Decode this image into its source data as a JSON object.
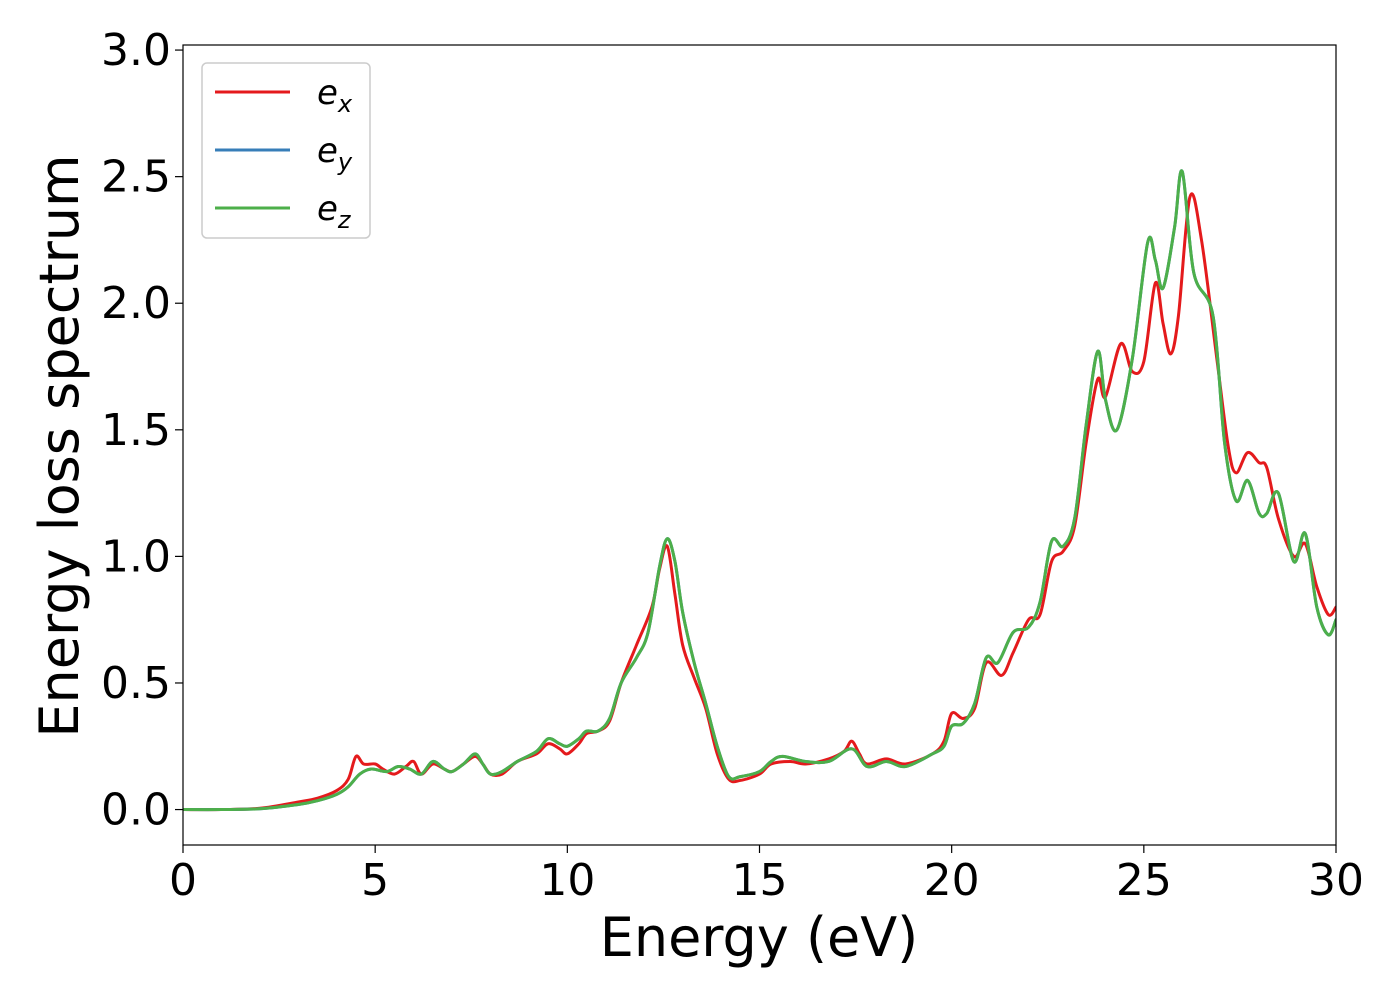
{
  "chart_data": {
    "type": "line",
    "title": "",
    "xlabel": "Energy (eV)",
    "ylabel": "Energy loss spectrum",
    "xlim": [
      0,
      30
    ],
    "ylim": [
      -0.14,
      3.02
    ],
    "xticks": [
      0,
      5,
      10,
      15,
      20,
      25,
      30
    ],
    "yticks": [
      0.0,
      0.5,
      1.0,
      1.5,
      2.0,
      2.5,
      3.0
    ],
    "xtick_labels": [
      "0",
      "5",
      "10",
      "15",
      "20",
      "25",
      "30"
    ],
    "ytick_labels": [
      "0.0",
      "0.5",
      "1.0",
      "1.5",
      "2.0",
      "2.5",
      "3.0"
    ],
    "grid": false,
    "legend_position": "top-left",
    "series": [
      {
        "name": "e_x",
        "label_base": "e",
        "label_sub": "x",
        "color": "#e41a1c",
        "points": [
          [
            0,
            0.0
          ],
          [
            1,
            0.0
          ],
          [
            2,
            0.005
          ],
          [
            3,
            0.03
          ],
          [
            3.5,
            0.045
          ],
          [
            4,
            0.075
          ],
          [
            4.3,
            0.12
          ],
          [
            4.5,
            0.21
          ],
          [
            4.7,
            0.18
          ],
          [
            5.0,
            0.18
          ],
          [
            5.2,
            0.16
          ],
          [
            5.5,
            0.14
          ],
          [
            5.8,
            0.17
          ],
          [
            6.0,
            0.19
          ],
          [
            6.2,
            0.14
          ],
          [
            6.5,
            0.18
          ],
          [
            6.8,
            0.16
          ],
          [
            7.0,
            0.15
          ],
          [
            7.3,
            0.18
          ],
          [
            7.6,
            0.21
          ],
          [
            7.8,
            0.18
          ],
          [
            8.0,
            0.14
          ],
          [
            8.3,
            0.14
          ],
          [
            8.7,
            0.19
          ],
          [
            9.2,
            0.22
          ],
          [
            9.5,
            0.26
          ],
          [
            9.8,
            0.24
          ],
          [
            10.0,
            0.22
          ],
          [
            10.3,
            0.26
          ],
          [
            10.5,
            0.3
          ],
          [
            10.8,
            0.31
          ],
          [
            11.1,
            0.35
          ],
          [
            11.4,
            0.5
          ],
          [
            11.8,
            0.65
          ],
          [
            12.2,
            0.8
          ],
          [
            12.4,
            0.95
          ],
          [
            12.6,
            1.04
          ],
          [
            12.8,
            0.85
          ],
          [
            13.0,
            0.65
          ],
          [
            13.3,
            0.52
          ],
          [
            13.6,
            0.4
          ],
          [
            13.9,
            0.22
          ],
          [
            14.2,
            0.12
          ],
          [
            14.5,
            0.115
          ],
          [
            15.0,
            0.14
          ],
          [
            15.3,
            0.18
          ],
          [
            15.8,
            0.19
          ],
          [
            16.2,
            0.18
          ],
          [
            16.8,
            0.2
          ],
          [
            17.2,
            0.23
          ],
          [
            17.4,
            0.27
          ],
          [
            17.6,
            0.22
          ],
          [
            17.8,
            0.18
          ],
          [
            18.3,
            0.2
          ],
          [
            18.8,
            0.18
          ],
          [
            19.5,
            0.22
          ],
          [
            19.8,
            0.27
          ],
          [
            20.0,
            0.38
          ],
          [
            20.3,
            0.36
          ],
          [
            20.6,
            0.4
          ],
          [
            20.9,
            0.58
          ],
          [
            21.3,
            0.53
          ],
          [
            21.6,
            0.62
          ],
          [
            22.0,
            0.75
          ],
          [
            22.3,
            0.77
          ],
          [
            22.6,
            0.98
          ],
          [
            22.9,
            1.02
          ],
          [
            23.2,
            1.12
          ],
          [
            23.5,
            1.45
          ],
          [
            23.8,
            1.7
          ],
          [
            24.0,
            1.63
          ],
          [
            24.4,
            1.84
          ],
          [
            24.7,
            1.73
          ],
          [
            25.0,
            1.77
          ],
          [
            25.3,
            2.08
          ],
          [
            25.5,
            1.92
          ],
          [
            25.7,
            1.8
          ],
          [
            25.9,
            1.95
          ],
          [
            26.2,
            2.42
          ],
          [
            26.5,
            2.25
          ],
          [
            26.9,
            1.78
          ],
          [
            27.2,
            1.43
          ],
          [
            27.4,
            1.33
          ],
          [
            27.7,
            1.41
          ],
          [
            28.0,
            1.37
          ],
          [
            28.2,
            1.35
          ],
          [
            28.5,
            1.15
          ],
          [
            28.9,
            1.0
          ],
          [
            29.2,
            1.05
          ],
          [
            29.5,
            0.88
          ],
          [
            29.8,
            0.77
          ],
          [
            30.0,
            0.8
          ]
        ]
      },
      {
        "name": "e_y",
        "label_base": "e",
        "label_sub": "y",
        "color": "#377eb8",
        "points": [
          [
            0,
            0.0
          ],
          [
            1,
            0.0
          ],
          [
            2,
            0.003
          ],
          [
            3,
            0.02
          ],
          [
            3.5,
            0.035
          ],
          [
            4,
            0.06
          ],
          [
            4.3,
            0.09
          ],
          [
            4.6,
            0.14
          ],
          [
            4.9,
            0.16
          ],
          [
            5.3,
            0.15
          ],
          [
            5.6,
            0.17
          ],
          [
            5.9,
            0.16
          ],
          [
            6.2,
            0.14
          ],
          [
            6.5,
            0.19
          ],
          [
            6.8,
            0.16
          ],
          [
            7.0,
            0.15
          ],
          [
            7.3,
            0.18
          ],
          [
            7.6,
            0.22
          ],
          [
            7.8,
            0.18
          ],
          [
            8.0,
            0.14
          ],
          [
            8.3,
            0.15
          ],
          [
            8.7,
            0.19
          ],
          [
            9.2,
            0.23
          ],
          [
            9.5,
            0.28
          ],
          [
            9.8,
            0.26
          ],
          [
            10.0,
            0.25
          ],
          [
            10.3,
            0.28
          ],
          [
            10.5,
            0.31
          ],
          [
            10.8,
            0.31
          ],
          [
            11.1,
            0.36
          ],
          [
            11.4,
            0.5
          ],
          [
            11.8,
            0.6
          ],
          [
            12.1,
            0.7
          ],
          [
            12.4,
            0.96
          ],
          [
            12.6,
            1.07
          ],
          [
            12.8,
            0.98
          ],
          [
            13.0,
            0.78
          ],
          [
            13.3,
            0.58
          ],
          [
            13.6,
            0.42
          ],
          [
            13.9,
            0.25
          ],
          [
            14.2,
            0.13
          ],
          [
            14.5,
            0.13
          ],
          [
            15.0,
            0.15
          ],
          [
            15.3,
            0.19
          ],
          [
            15.6,
            0.21
          ],
          [
            16.2,
            0.19
          ],
          [
            16.8,
            0.19
          ],
          [
            17.4,
            0.24
          ],
          [
            17.8,
            0.17
          ],
          [
            18.3,
            0.19
          ],
          [
            18.8,
            0.17
          ],
          [
            19.5,
            0.22
          ],
          [
            19.8,
            0.25
          ],
          [
            20.0,
            0.33
          ],
          [
            20.3,
            0.34
          ],
          [
            20.6,
            0.42
          ],
          [
            20.9,
            0.6
          ],
          [
            21.2,
            0.58
          ],
          [
            21.6,
            0.7
          ],
          [
            22.0,
            0.72
          ],
          [
            22.3,
            0.82
          ],
          [
            22.6,
            1.06
          ],
          [
            22.9,
            1.04
          ],
          [
            23.2,
            1.15
          ],
          [
            23.5,
            1.52
          ],
          [
            23.8,
            1.81
          ],
          [
            24.0,
            1.62
          ],
          [
            24.3,
            1.5
          ],
          [
            24.7,
            1.78
          ],
          [
            25.1,
            2.24
          ],
          [
            25.3,
            2.17
          ],
          [
            25.5,
            2.06
          ],
          [
            25.8,
            2.3
          ],
          [
            26.0,
            2.52
          ],
          [
            26.3,
            2.12
          ],
          [
            26.8,
            1.95
          ],
          [
            27.1,
            1.45
          ],
          [
            27.4,
            1.22
          ],
          [
            27.7,
            1.3
          ],
          [
            28.0,
            1.17
          ],
          [
            28.2,
            1.17
          ],
          [
            28.5,
            1.25
          ],
          [
            28.9,
            0.98
          ],
          [
            29.2,
            1.09
          ],
          [
            29.5,
            0.8
          ],
          [
            29.8,
            0.69
          ],
          [
            30.0,
            0.75
          ]
        ]
      },
      {
        "name": "e_z",
        "label_base": "e",
        "label_sub": "z",
        "color": "#4daf4a",
        "points": [
          [
            0,
            0.0
          ],
          [
            1,
            0.0
          ],
          [
            2,
            0.003
          ],
          [
            3,
            0.02
          ],
          [
            3.5,
            0.035
          ],
          [
            4,
            0.06
          ],
          [
            4.3,
            0.09
          ],
          [
            4.6,
            0.14
          ],
          [
            4.9,
            0.16
          ],
          [
            5.3,
            0.15
          ],
          [
            5.6,
            0.17
          ],
          [
            5.9,
            0.16
          ],
          [
            6.2,
            0.14
          ],
          [
            6.5,
            0.19
          ],
          [
            6.8,
            0.16
          ],
          [
            7.0,
            0.15
          ],
          [
            7.3,
            0.18
          ],
          [
            7.6,
            0.22
          ],
          [
            7.8,
            0.18
          ],
          [
            8.0,
            0.14
          ],
          [
            8.3,
            0.15
          ],
          [
            8.7,
            0.19
          ],
          [
            9.2,
            0.23
          ],
          [
            9.5,
            0.28
          ],
          [
            9.8,
            0.26
          ],
          [
            10.0,
            0.25
          ],
          [
            10.3,
            0.28
          ],
          [
            10.5,
            0.31
          ],
          [
            10.8,
            0.31
          ],
          [
            11.1,
            0.36
          ],
          [
            11.4,
            0.5
          ],
          [
            11.8,
            0.6
          ],
          [
            12.1,
            0.7
          ],
          [
            12.4,
            0.96
          ],
          [
            12.6,
            1.07
          ],
          [
            12.8,
            0.98
          ],
          [
            13.0,
            0.78
          ],
          [
            13.3,
            0.58
          ],
          [
            13.6,
            0.42
          ],
          [
            13.9,
            0.25
          ],
          [
            14.2,
            0.13
          ],
          [
            14.5,
            0.13
          ],
          [
            15.0,
            0.15
          ],
          [
            15.3,
            0.19
          ],
          [
            15.6,
            0.21
          ],
          [
            16.2,
            0.19
          ],
          [
            16.8,
            0.19
          ],
          [
            17.4,
            0.24
          ],
          [
            17.8,
            0.17
          ],
          [
            18.3,
            0.19
          ],
          [
            18.8,
            0.17
          ],
          [
            19.5,
            0.22
          ],
          [
            19.8,
            0.25
          ],
          [
            20.0,
            0.33
          ],
          [
            20.3,
            0.34
          ],
          [
            20.6,
            0.42
          ],
          [
            20.9,
            0.6
          ],
          [
            21.2,
            0.58
          ],
          [
            21.6,
            0.7
          ],
          [
            22.0,
            0.72
          ],
          [
            22.3,
            0.82
          ],
          [
            22.6,
            1.06
          ],
          [
            22.9,
            1.04
          ],
          [
            23.2,
            1.15
          ],
          [
            23.5,
            1.52
          ],
          [
            23.8,
            1.81
          ],
          [
            24.0,
            1.62
          ],
          [
            24.3,
            1.5
          ],
          [
            24.7,
            1.78
          ],
          [
            25.1,
            2.24
          ],
          [
            25.3,
            2.17
          ],
          [
            25.5,
            2.06
          ],
          [
            25.8,
            2.3
          ],
          [
            26.0,
            2.52
          ],
          [
            26.3,
            2.12
          ],
          [
            26.8,
            1.95
          ],
          [
            27.1,
            1.45
          ],
          [
            27.4,
            1.22
          ],
          [
            27.7,
            1.3
          ],
          [
            28.0,
            1.17
          ],
          [
            28.2,
            1.17
          ],
          [
            28.5,
            1.25
          ],
          [
            28.9,
            0.98
          ],
          [
            29.2,
            1.09
          ],
          [
            29.5,
            0.8
          ],
          [
            29.8,
            0.69
          ],
          [
            30.0,
            0.75
          ]
        ]
      }
    ]
  }
}
